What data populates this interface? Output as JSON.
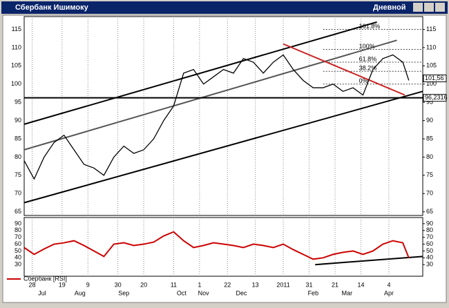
{
  "window": {
    "title": "Сбербанк Ишимоку",
    "timeframe": "Дневной"
  },
  "chart_data": [
    {
      "type": "line",
      "color": "#000000",
      "x": [
        0,
        5,
        10,
        15,
        20,
        25,
        30,
        35,
        40,
        45,
        50,
        55,
        60,
        65,
        70,
        75,
        80,
        85,
        90,
        95,
        100,
        105,
        110,
        115,
        120,
        125,
        130,
        135,
        140,
        145,
        150,
        155,
        160,
        165,
        170,
        175,
        180,
        185,
        190,
        193
      ],
      "values": [
        79,
        74,
        80,
        84,
        86,
        82,
        78,
        77,
        75,
        80,
        83,
        81,
        82,
        85,
        90,
        94,
        103,
        104,
        100,
        102,
        104,
        103,
        107,
        106,
        103,
        106,
        108,
        104,
        101,
        99,
        99,
        100,
        98,
        99,
        97,
        104,
        107,
        108,
        106,
        101
      ],
      "xlim": [
        0,
        200
      ],
      "ylim": [
        64,
        118.5
      ],
      "yticks": [
        65,
        70,
        75,
        80,
        85,
        90,
        95,
        100,
        105,
        110,
        115
      ],
      "xticks": [
        {
          "value": 4,
          "label": "28"
        },
        {
          "value": 19,
          "label": "19"
        },
        {
          "value": 32,
          "label": "9"
        },
        {
          "value": 47,
          "label": "30"
        },
        {
          "value": 60,
          "label": "20"
        },
        {
          "value": 75,
          "label": "11"
        },
        {
          "value": 88,
          "label": "1"
        },
        {
          "value": 102,
          "label": "22"
        },
        {
          "value": 116,
          "label": "13"
        },
        {
          "value": 130,
          "label": "2011"
        },
        {
          "value": 143,
          "label": "31"
        },
        {
          "value": 156,
          "label": "21"
        },
        {
          "value": 169,
          "label": "14"
        },
        {
          "value": 183,
          "label": "4"
        }
      ],
      "month_ticks": [
        {
          "value": 9,
          "label": "Jul"
        },
        {
          "value": 28,
          "label": "Aug"
        },
        {
          "value": 50,
          "label": "Sep"
        },
        {
          "value": 79,
          "label": "Oct"
        },
        {
          "value": 90,
          "label": "Nov"
        },
        {
          "value": 109,
          "label": "Dec"
        },
        {
          "value": 145,
          "label": "Feb"
        },
        {
          "value": 162,
          "label": "Mar"
        },
        {
          "value": 183,
          "label": "Apr"
        }
      ],
      "grid": true,
      "trend_lines": [
        {
          "x": [
            0,
            177
          ],
          "y": [
            89,
            117
          ],
          "color": "#000000"
        },
        {
          "x": [
            0,
            200
          ],
          "y": [
            67.5,
            98
          ],
          "color": "#000000"
        },
        {
          "x": [
            0,
            187
          ],
          "y": [
            82,
            112
          ],
          "color": "#555555"
        },
        {
          "x": [
            130,
            191
          ],
          "y": [
            111,
            97
          ],
          "color": "#cc2222"
        },
        {
          "x": [
            0,
            200
          ],
          "y": [
            96.2316,
            96.2316
          ],
          "color": "#000000"
        }
      ],
      "fib_levels": [
        {
          "value": 115,
          "label": "161.8%"
        },
        {
          "value": 109.5,
          "label": "100%"
        },
        {
          "value": 106,
          "label": "61.8%"
        },
        {
          "value": 103.5,
          "label": "38.2%"
        },
        {
          "value": 100,
          "label": "0%"
        }
      ],
      "price_labels": [
        {
          "value": 101.56,
          "label": "101,56"
        },
        {
          "value": 96.2316,
          "label": "96,2316"
        }
      ]
    },
    {
      "type": "line",
      "x": [
        0,
        5,
        10,
        15,
        20,
        25,
        30,
        35,
        40,
        45,
        50,
        55,
        60,
        65,
        70,
        75,
        80,
        85,
        90,
        95,
        100,
        105,
        110,
        115,
        120,
        125,
        130,
        135,
        140,
        145,
        150,
        155,
        160,
        165,
        170,
        175,
        180,
        185,
        190,
        193
      ],
      "series": [
        {
          "name": "Сбербанк [RSI]",
          "color": "#cc0000",
          "values": [
            55,
            45,
            53,
            60,
            62,
            65,
            58,
            50,
            42,
            60,
            62,
            58,
            60,
            63,
            72,
            78,
            65,
            55,
            58,
            62,
            60,
            58,
            55,
            60,
            58,
            55,
            60,
            52,
            45,
            38,
            40,
            45,
            48,
            50,
            45,
            50,
            60,
            65,
            62,
            40
          ]
        }
      ],
      "xlim": [
        0,
        200
      ],
      "ylim": [
        13,
        99
      ],
      "yticks": [
        30,
        40,
        50,
        60,
        70,
        80,
        90
      ],
      "trend_lines": [
        {
          "x": [
            146,
            200
          ],
          "y": [
            30,
            42
          ],
          "color": "#000000"
        }
      ]
    }
  ]
}
